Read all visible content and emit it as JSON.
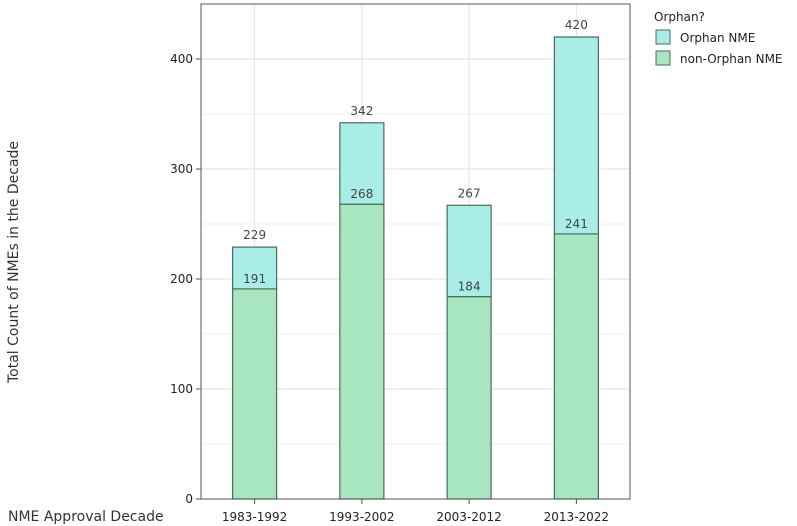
{
  "chart_data": {
    "type": "bar",
    "stacked": true,
    "xlabel": "NME Approval Decade",
    "ylabel": "Total Count of NMEs in the Decade",
    "categories": [
      "1983-1992",
      "1993-2002",
      "2003-2012",
      "2013-2022"
    ],
    "series": [
      {
        "name": "non-Orphan NME",
        "values": [
          191,
          268,
          184,
          241
        ],
        "color": "#a8e6bf"
      },
      {
        "name": "Orphan NME",
        "values": [
          38,
          74,
          83,
          179
        ],
        "color": "#a8ede8"
      }
    ],
    "data_labels": {
      "totals": [
        229,
        342,
        267,
        420
      ],
      "non_orphan": [
        191,
        268,
        184,
        241
      ]
    },
    "ylim": [
      0,
      450
    ],
    "yticks": [
      0,
      100,
      200,
      300,
      400
    ],
    "grid": true,
    "legend": {
      "title": "Orphan?",
      "placement": "top-right",
      "entries": [
        "Orphan NME",
        "non-Orphan NME"
      ]
    },
    "bar_stroke": "#4d6b5c"
  }
}
